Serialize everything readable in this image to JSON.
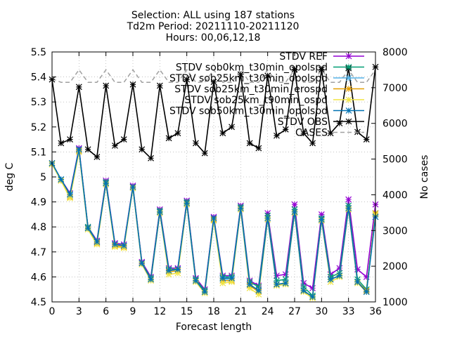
{
  "chart_data": {
    "type": "line",
    "title_lines": [
      "Selection: ALL using    187 stations",
      "Td2m   Period: 20211110-20211120",
      "Hours: 00,06,12,18"
    ],
    "xlabel": "Forecast length",
    "ylabel": "deg C",
    "y2label": "No cases",
    "xlim": [
      0,
      36
    ],
    "ylim": [
      4.5,
      5.5
    ],
    "y2lim": [
      1000,
      8000
    ],
    "xticks": [
      0,
      3,
      6,
      9,
      12,
      15,
      18,
      21,
      24,
      27,
      30,
      33,
      36
    ],
    "yticks": [
      4.5,
      4.6,
      4.7,
      4.8,
      4.9,
      5.0,
      5.1,
      5.2,
      5.3,
      5.4,
      5.5
    ],
    "ytick_labels": [
      "4.5",
      "4.6",
      "4.7",
      "4.8",
      "4.9",
      "5",
      "5.1",
      "5.2",
      "5.3",
      "5.4",
      "5.5"
    ],
    "y2ticks": [
      1000,
      2000,
      3000,
      4000,
      5000,
      6000,
      7000,
      8000
    ],
    "grid": true,
    "legend_position": "top-right",
    "x": [
      0,
      1,
      2,
      3,
      4,
      5,
      6,
      7,
      8,
      9,
      10,
      11,
      12,
      13,
      14,
      15,
      16,
      17,
      18,
      19,
      20,
      21,
      22,
      23,
      24,
      25,
      26,
      27,
      28,
      29,
      30,
      31,
      32,
      33,
      34,
      35,
      36
    ],
    "series": [
      {
        "name": "STDV REF",
        "color": "#9400d3",
        "marker": "x-plus",
        "axis": "y",
        "values": [
          5.055,
          4.99,
          4.935,
          5.115,
          4.8,
          4.745,
          4.985,
          4.735,
          4.73,
          4.965,
          4.66,
          4.6,
          4.87,
          4.635,
          4.635,
          4.905,
          4.595,
          4.55,
          4.84,
          4.605,
          4.605,
          4.885,
          4.585,
          4.565,
          4.855,
          4.605,
          4.61,
          4.89,
          4.575,
          4.555,
          4.85,
          4.61,
          4.635,
          4.91,
          4.63,
          4.6,
          4.89
        ]
      },
      {
        "name": "STDV sob0km_t30min_opolspd",
        "color": "#009e73",
        "marker": "x-plus",
        "axis": "y",
        "values": [
          5.055,
          4.99,
          4.93,
          5.11,
          4.8,
          4.74,
          4.98,
          4.73,
          4.725,
          4.96,
          4.655,
          4.595,
          4.865,
          4.63,
          4.63,
          4.9,
          4.59,
          4.545,
          4.835,
          4.6,
          4.6,
          4.88,
          4.58,
          4.56,
          4.845,
          4.585,
          4.59,
          4.87,
          4.56,
          4.525,
          4.835,
          4.6,
          4.615,
          4.885,
          4.59,
          4.55,
          4.855
        ]
      },
      {
        "name": "STDV sob25km_t30min_opolspd",
        "color": "#56b4e9",
        "marker": "x-plus",
        "axis": "y",
        "values": [
          5.055,
          4.99,
          4.925,
          5.105,
          4.795,
          4.74,
          4.975,
          4.73,
          4.725,
          4.96,
          4.655,
          4.59,
          4.86,
          4.625,
          4.63,
          4.895,
          4.585,
          4.54,
          4.83,
          4.59,
          4.59,
          4.875,
          4.57,
          4.545,
          4.835,
          4.57,
          4.575,
          4.86,
          4.545,
          4.52,
          4.83,
          4.59,
          4.605,
          4.875,
          4.58,
          4.54,
          4.84
        ]
      },
      {
        "name": "STDV sob25km_t30min_erospd",
        "color": "#e69f00",
        "marker": "x-plus",
        "axis": "y",
        "values": [
          5.055,
          4.985,
          4.92,
          5.105,
          4.795,
          4.735,
          4.975,
          4.725,
          4.72,
          4.96,
          4.655,
          4.59,
          4.86,
          4.62,
          4.625,
          4.895,
          4.585,
          4.54,
          4.83,
          4.585,
          4.585,
          4.875,
          4.565,
          4.54,
          4.835,
          4.57,
          4.575,
          4.86,
          4.545,
          4.52,
          4.83,
          4.59,
          4.605,
          4.875,
          4.58,
          4.545,
          4.855
        ]
      },
      {
        "name": "STDV sob25km_t90min_ospd",
        "color": "#f0e442",
        "marker": "x-plus",
        "axis": "y",
        "values": [
          5.05,
          4.985,
          4.915,
          5.1,
          4.79,
          4.73,
          4.97,
          4.72,
          4.715,
          4.955,
          4.65,
          4.585,
          4.855,
          4.61,
          4.615,
          4.89,
          4.58,
          4.535,
          4.825,
          4.575,
          4.58,
          4.87,
          4.555,
          4.53,
          4.83,
          4.565,
          4.57,
          4.855,
          4.54,
          4.515,
          4.825,
          4.58,
          4.6,
          4.87,
          4.575,
          4.54,
          4.85
        ]
      },
      {
        "name": "STDV sob50km_t30min_opolspd",
        "color": "#0072b2",
        "marker": "x-plus",
        "axis": "y",
        "values": [
          5.055,
          4.99,
          4.93,
          5.11,
          4.795,
          4.74,
          4.975,
          4.73,
          4.725,
          4.96,
          4.655,
          4.59,
          4.86,
          4.625,
          4.63,
          4.895,
          4.585,
          4.54,
          4.835,
          4.595,
          4.595,
          4.875,
          4.57,
          4.545,
          4.835,
          4.57,
          4.575,
          4.86,
          4.545,
          4.52,
          4.83,
          4.59,
          4.605,
          4.875,
          4.58,
          4.54,
          4.84
        ]
      },
      {
        "name": "STDV OBS",
        "color": "#000000",
        "marker": "x-plus",
        "axis": "y",
        "values": [
          5.39,
          5.135,
          5.15,
          5.36,
          5.11,
          5.08,
          5.365,
          5.125,
          5.15,
          5.37,
          5.11,
          5.075,
          5.365,
          5.155,
          5.175,
          5.39,
          5.135,
          5.095,
          5.38,
          5.175,
          5.2,
          5.41,
          5.135,
          5.115,
          5.405,
          5.165,
          5.19,
          5.43,
          5.175,
          5.135,
          5.43,
          5.175,
          5.215,
          5.435,
          5.18,
          5.15,
          5.44
        ]
      },
      {
        "name": "CASES",
        "color": "#a0a0a0",
        "marker": "none",
        "dash": "6,4",
        "axis": "y2",
        "values": [
          7250,
          7150,
          7150,
          7500,
          7150,
          7150,
          7500,
          7150,
          7150,
          7500,
          7150,
          7150,
          7500,
          7150,
          7150,
          7500,
          7150,
          7150,
          7500,
          7150,
          7150,
          7500,
          7150,
          7150,
          7500,
          7150,
          7150,
          7500,
          7150,
          7150,
          7500,
          7150,
          7150,
          7500,
          7150,
          7150,
          7500
        ]
      }
    ]
  }
}
